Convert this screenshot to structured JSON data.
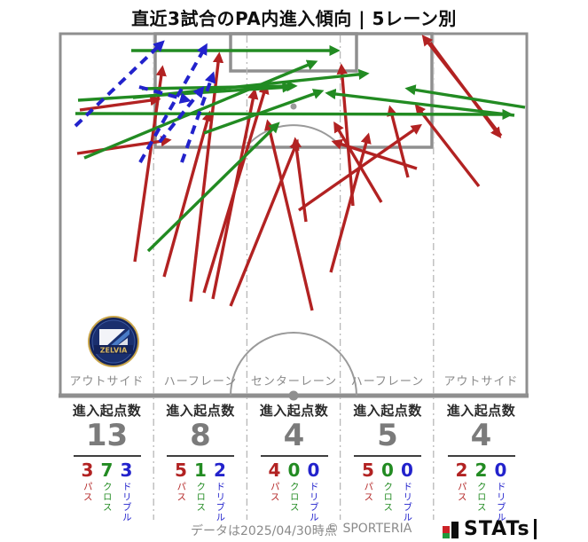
{
  "title": "直近3試合のPA内進入傾向 | 5レーン別",
  "pitch": {
    "club_badge_text": "ZELVIA"
  },
  "footer": {
    "data_note": "データは2025/04/30時点",
    "copyright": "© SPORTERIA",
    "logo_text": "STATs"
  },
  "colors": {
    "pass": "#b22222",
    "cross": "#228b22",
    "dribble": "#2222cc",
    "pitch_line": "#8f8f8f",
    "lane_divider": "#b8b8b8",
    "total_number": "#7b7b7b"
  },
  "chart_data": {
    "type": "scatter",
    "subtype": "pitch-arrow-map",
    "title": "直近3試合のPA内進入傾向 | 5レーン別",
    "entry_count_label": "進入起点数",
    "lanes": [
      {
        "label": "アウトサイド",
        "total": 13,
        "pass": 3,
        "cross": 7,
        "dribble": 3
      },
      {
        "label": "ハーフレーン",
        "total": 8,
        "pass": 5,
        "cross": 1,
        "dribble": 2
      },
      {
        "label": "センターレーン",
        "total": 4,
        "pass": 4,
        "cross": 0,
        "dribble": 0
      },
      {
        "label": "ハーフレーン",
        "total": 5,
        "pass": 5,
        "cross": 0,
        "dribble": 0
      },
      {
        "label": "アウトサイド",
        "total": 4,
        "pass": 2,
        "cross": 2,
        "dribble": 0
      }
    ],
    "arrow_types": [
      {
        "key": "pass",
        "label": "パス",
        "color": "#b22222",
        "style": "solid"
      },
      {
        "key": "cross",
        "label": "クロス",
        "color": "#228b22",
        "style": "solid"
      },
      {
        "key": "dribble",
        "label": "ドリブル",
        "color": "#2222cc",
        "style": "dashed"
      }
    ],
    "arrows": [
      {
        "type": "pass",
        "from": [
          90,
          124
        ],
        "to": [
          178,
          112
        ]
      },
      {
        "type": "pass",
        "from": [
          87,
          173
        ],
        "to": [
          190,
          158
        ]
      },
      {
        "type": "pass",
        "from": [
          152,
          295
        ],
        "to": [
          183,
          77
        ]
      },
      {
        "type": "pass",
        "from": [
          215,
          340
        ],
        "to": [
          247,
          62
        ]
      },
      {
        "type": "pass",
        "from": [
          230,
          330
        ],
        "to": [
          300,
          97
        ]
      },
      {
        "type": "pass",
        "from": [
          185,
          312
        ],
        "to": [
          236,
          128
        ]
      },
      {
        "type": "pass",
        "from": [
          240,
          337
        ],
        "to": [
          287,
          103
        ]
      },
      {
        "type": "pass",
        "from": [
          260,
          345
        ],
        "to": [
          335,
          160
        ]
      },
      {
        "type": "pass",
        "from": [
          345,
          250
        ],
        "to": [
          333,
          158
        ]
      },
      {
        "type": "pass",
        "from": [
          352,
          350
        ],
        "to": [
          302,
          138
        ]
      },
      {
        "type": "pass",
        "from": [
          337,
          237
        ],
        "to": [
          473,
          142
        ]
      },
      {
        "type": "pass",
        "from": [
          373,
          307
        ],
        "to": [
          415,
          153
        ]
      },
      {
        "type": "pass",
        "from": [
          430,
          228
        ],
        "to": [
          378,
          140
        ]
      },
      {
        "type": "pass",
        "from": [
          470,
          190
        ],
        "to": [
          377,
          160
        ]
      },
      {
        "type": "pass",
        "from": [
          460,
          200
        ],
        "to": [
          440,
          122
        ]
      },
      {
        "type": "pass",
        "from": [
          485,
          48
        ],
        "to": [
          563,
          153
        ]
      },
      {
        "type": "pass",
        "from": [
          398,
          232
        ],
        "to": [
          385,
          75
        ]
      },
      {
        "type": "pass",
        "from": [
          565,
          153
        ],
        "to": [
          478,
          42
        ]
      },
      {
        "type": "pass",
        "from": [
          540,
          210
        ],
        "to": [
          470,
          120
        ]
      },
      {
        "type": "cross",
        "from": [
          148,
          57
        ],
        "to": [
          380,
          57
        ]
      },
      {
        "type": "cross",
        "from": [
          85,
          128
        ],
        "to": [
          575,
          129
        ]
      },
      {
        "type": "cross",
        "from": [
          160,
          100
        ],
        "to": [
          332,
          97
        ]
      },
      {
        "type": "cross",
        "from": [
          150,
          110
        ],
        "to": [
          413,
          83
        ]
      },
      {
        "type": "cross",
        "from": [
          167,
          283
        ],
        "to": [
          313,
          140
        ]
      },
      {
        "type": "cross",
        "from": [
          95,
          178
        ],
        "to": [
          355,
          70
        ]
      },
      {
        "type": "cross",
        "from": [
          88,
          113
        ],
        "to": [
          327,
          98
        ]
      },
      {
        "type": "cross",
        "from": [
          230,
          150
        ],
        "to": [
          362,
          103
        ]
      },
      {
        "type": "cross",
        "from": [
          580,
          130
        ],
        "to": [
          370,
          105
        ]
      },
      {
        "type": "cross",
        "from": [
          592,
          121
        ],
        "to": [
          460,
          100
        ]
      },
      {
        "type": "dribble",
        "from": [
          85,
          142
        ],
        "to": [
          183,
          48
        ]
      },
      {
        "type": "dribble",
        "from": [
          158,
          183
        ],
        "to": [
          232,
          52
        ]
      },
      {
        "type": "dribble",
        "from": [
          205,
          183
        ],
        "to": [
          240,
          84
        ]
      },
      {
        "type": "dribble",
        "from": [
          157,
          98
        ],
        "to": [
          212,
          113
        ]
      },
      {
        "type": "dribble",
        "from": [
          180,
          160
        ],
        "to": [
          228,
          100
        ]
      }
    ]
  }
}
